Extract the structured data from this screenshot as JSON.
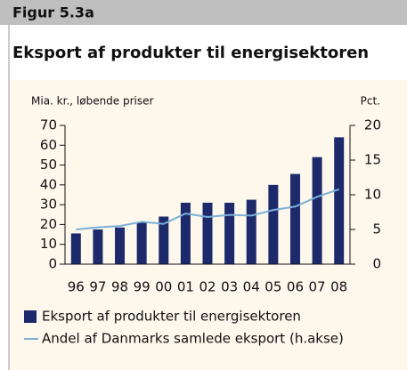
{
  "chart_data": {
    "type": "bar",
    "label": "Figur 5.3a",
    "title": "Eksport af produkter til energisektoren",
    "ylabel": "Mia. kr., løbende priser",
    "y2label": "Pct.",
    "categories": [
      "96",
      "97",
      "98",
      "99",
      "00",
      "01",
      "02",
      "03",
      "04",
      "05",
      "06",
      "07",
      "08"
    ],
    "series": [
      {
        "name": "Eksport af produkter til energisektoren",
        "color": "#1c2a6b",
        "type": "bar",
        "values": [
          15.5,
          17.5,
          18.5,
          21,
          24,
          31,
          31,
          31,
          32.5,
          40,
          45.5,
          54,
          64
        ]
      },
      {
        "name": "Andel af Danmarks samlede eksport (h.akse)",
        "color": "#7ab0d8",
        "type": "line",
        "axis": "y2",
        "values": [
          5.0,
          5.3,
          5.5,
          6.1,
          5.8,
          7.3,
          6.8,
          7.1,
          7.0,
          7.8,
          8.3,
          9.7,
          10.8
        ]
      }
    ],
    "ylim": [
      0,
      70
    ],
    "yticks": [
      0,
      10,
      20,
      30,
      40,
      50,
      60,
      70
    ],
    "y2lim": [
      0,
      20
    ],
    "y2ticks": [
      0,
      5,
      10,
      15,
      20
    ]
  }
}
